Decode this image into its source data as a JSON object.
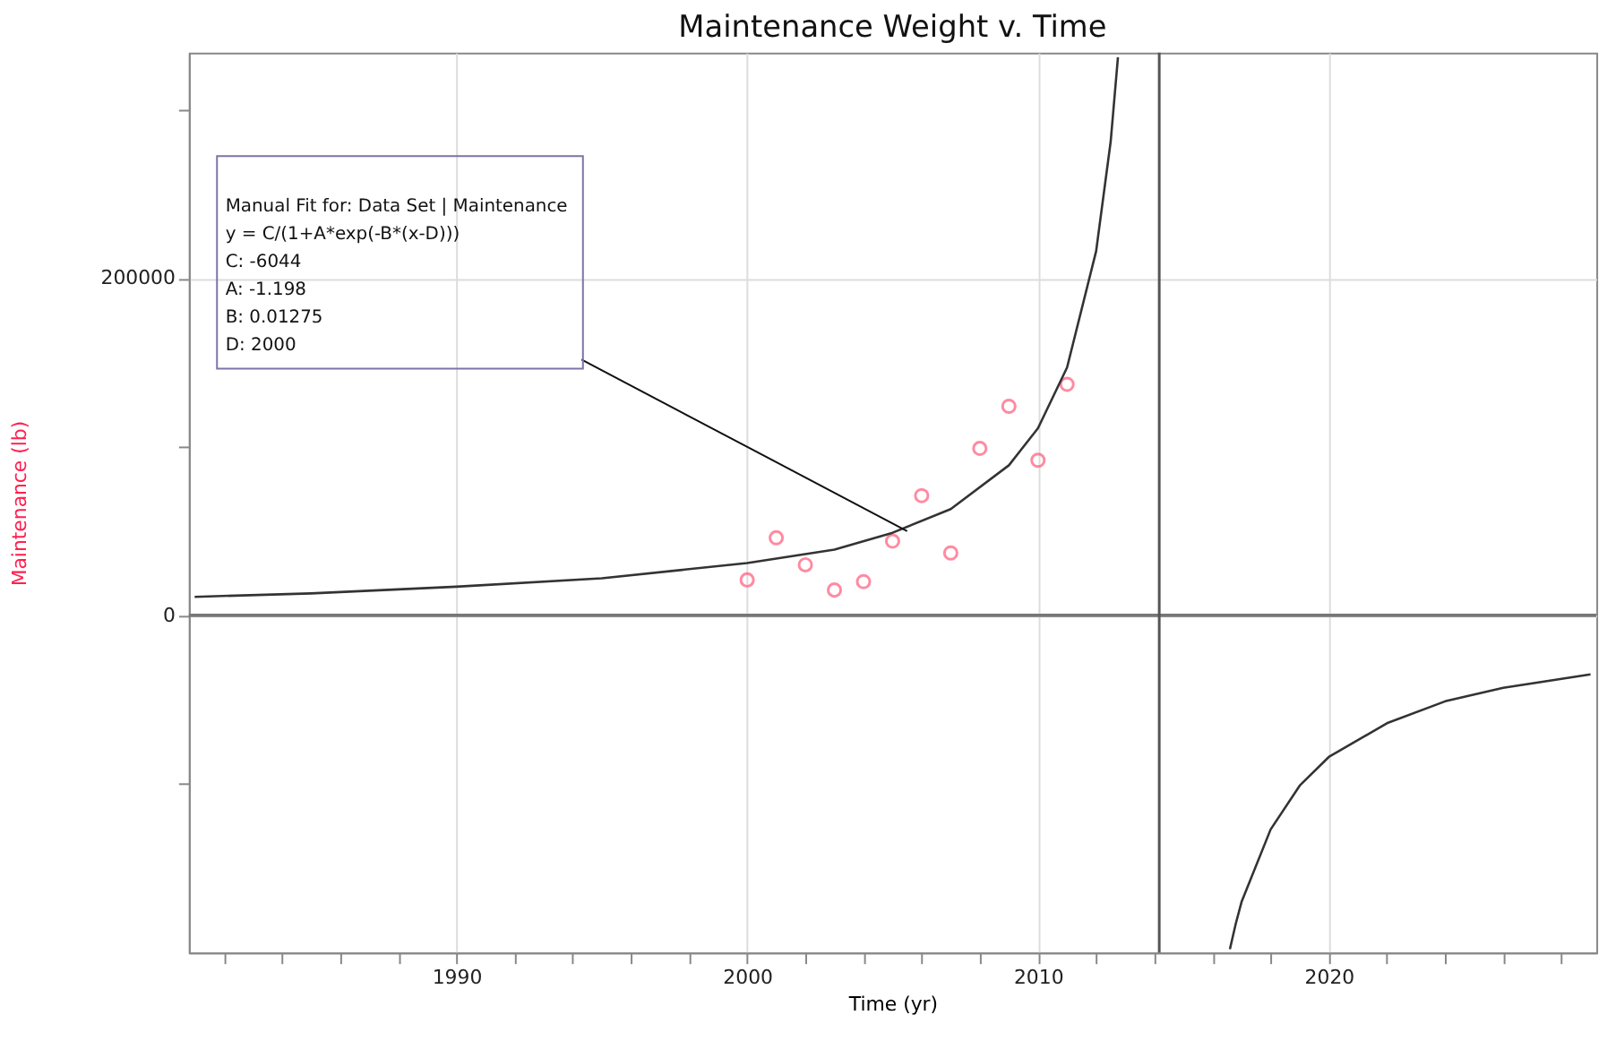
{
  "chart_data": {
    "type": "scatter",
    "title": "Maintenance Weight v. Time",
    "xlabel": "Time (yr)",
    "ylabel": "Maintenance (lb)",
    "xlim": [
      1980.8,
      2029.2
    ],
    "ylim": [
      -200000,
      333700
    ],
    "xticks": [
      {
        "value": 1982,
        "label": null
      },
      {
        "value": 1984,
        "label": null
      },
      {
        "value": 1986,
        "label": null
      },
      {
        "value": 1988,
        "label": null
      },
      1990,
      {
        "value": 1992,
        "label": null
      },
      {
        "value": 1994,
        "label": null
      },
      {
        "value": 1996,
        "label": null
      },
      {
        "value": 1998,
        "label": null
      },
      2000,
      {
        "value": 2002,
        "label": null
      },
      {
        "value": 2004,
        "label": null
      },
      {
        "value": 2006,
        "label": null
      },
      {
        "value": 2008,
        "label": null
      },
      2010,
      {
        "value": 2012,
        "label": null
      },
      {
        "value": 2014,
        "label": null
      },
      {
        "value": 2016,
        "label": null
      },
      {
        "value": 2018,
        "label": null
      },
      2020,
      {
        "value": 2022,
        "label": null
      },
      {
        "value": 2024,
        "label": null
      },
      {
        "value": 2026,
        "label": null
      },
      {
        "value": 2028,
        "label": null
      }
    ],
    "yticks": [
      {
        "value": -100000,
        "label": null
      },
      0,
      {
        "value": 100000,
        "label": null
      },
      200000,
      {
        "value": 300000,
        "label": null
      }
    ],
    "grid": true,
    "series": [
      {
        "color": "#ff5a7a",
        "marker": "circle",
        "x": [
          2000,
          2001,
          2002,
          2003,
          2004,
          2005,
          2006,
          2007,
          2008,
          2009,
          2010,
          2011
        ],
        "values": [
          21000,
          46000,
          30000,
          15000,
          20000,
          44000,
          71000,
          37000,
          99000,
          124000,
          92000,
          137000
        ]
      },
      {
        "type": "line",
        "color": "#333333",
        "marker": "none",
        "line_style": "solid",
        "x": [
          1981,
          1985,
          1990,
          1995,
          2000,
          2003,
          2005,
          2007,
          2009,
          2010,
          2011,
          2012,
          2012.5,
          2012.75
        ],
        "values": [
          11000,
          13000,
          17000,
          22000,
          31000,
          39000,
          49000,
          63000,
          89000,
          111000,
          147000,
          216000,
          281000,
          331000
        ]
      },
      {
        "type": "line",
        "color": "#333333",
        "marker": "none",
        "line_style": "solid",
        "x": [
          2016.6,
          2016.8,
          2017,
          2018,
          2019,
          2020,
          2022,
          2024,
          2026,
          2029
        ],
        "values": [
          -198000,
          -183000,
          -170000,
          -127000,
          -101000,
          -84000,
          -64000,
          -51000,
          -43000,
          -35000
        ]
      }
    ],
    "ref_lines": [
      {
        "axis": "y",
        "value": 0,
        "color": "#777777"
      },
      {
        "axis": "x",
        "value": 2014.17,
        "color": "#555555"
      }
    ],
    "annotations": [
      {
        "text": "Manual Fit for: Data Set | Maintenance\ny = C/(1+A*exp(-B*(x-D)))\nC: -6044\nA: -1.198\nB: 0.01275\nD: 2000",
        "x": 2005.5,
        "y": 50000
      }
    ]
  }
}
